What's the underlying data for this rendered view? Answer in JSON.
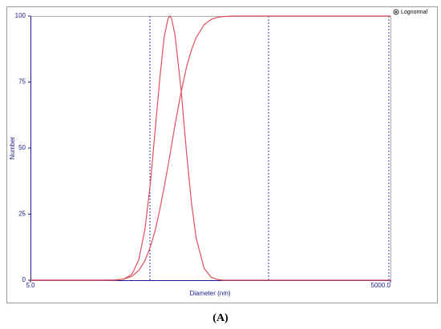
{
  "chart_data": {
    "type": "line",
    "log_x": true,
    "xlabel": "Diameter (nm)",
    "ylabel": "Number",
    "legend": "Lognormal",
    "caption": "(A)",
    "x": [
      5,
      10,
      15,
      20,
      25,
      30,
      35,
      40,
      45,
      50,
      55,
      60,
      65,
      70,
      72.5,
      75,
      80,
      90,
      100,
      110,
      120,
      140,
      160,
      180,
      200,
      250,
      300,
      400,
      500,
      1000,
      2000,
      5000
    ],
    "series": [
      {
        "color": "#e0505a",
        "values": [
          0,
          0,
          0,
          0,
          0,
          0.4,
          2.2,
          7.8,
          19.4,
          37,
          58,
          77,
          92,
          99,
          100,
          99,
          93,
          72,
          48,
          29,
          16,
          4.5,
          1.1,
          0.3,
          0,
          0,
          0,
          0,
          0,
          0,
          0,
          0
        ]
      },
      {
        "color": "#e0505a",
        "values": [
          0,
          0,
          0,
          0,
          0.1,
          0.4,
          1.5,
          3.7,
          7.4,
          12.7,
          19.2,
          27.1,
          35.2,
          43.2,
          47.2,
          51.2,
          58.7,
          71.2,
          80.8,
          87.3,
          91.8,
          96.7,
          98.7,
          99.5,
          99.8,
          100,
          100,
          100,
          100,
          100,
          100,
          100
        ]
      }
    ],
    "markers": [
      49.5,
      482,
      4850
    ],
    "marker_color": "#3a3ab0",
    "xlim": [
      5,
      5000
    ],
    "xticks": [
      {
        "value": 5,
        "label": "5.0"
      },
      {
        "value": 5000,
        "label": "5000.0"
      }
    ],
    "ylim": [
      0,
      100
    ],
    "yticks": [
      0,
      25,
      50,
      75,
      100
    ],
    "grid": false
  }
}
